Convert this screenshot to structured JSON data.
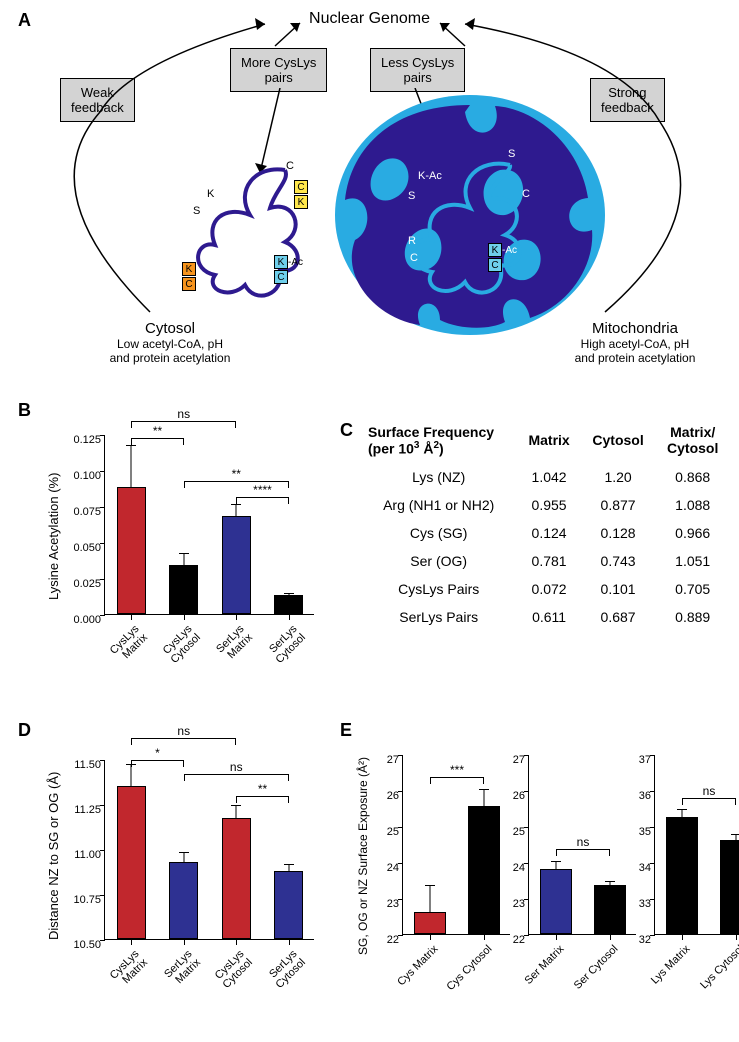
{
  "panelA": {
    "label": "A",
    "title": "Nuclear Genome",
    "boxes": {
      "weak_feedback": "Weak\nfeedback",
      "more_pairs": "More CysLys\npairs",
      "less_pairs": "Less CysLys\npairs",
      "strong_feedback": "Strong\nfeedback"
    },
    "cytosol": {
      "title": "Cytosol",
      "subtitle": "Low acetyl-CoA, pH\nand protein acetylation"
    },
    "mitochondria": {
      "title": "Mitochondria",
      "subtitle": "High acetyl-CoA, pH\nand protein acetylation"
    },
    "colors": {
      "mito_outer": "#29abe2",
      "mito_inner": "#2e1a8f",
      "protein_line": "#2e1a8f",
      "box_bg": "#d3d3d3",
      "yellow_box": "#ffe74c",
      "orange_box": "#f7941d",
      "blue_box": "#6fcfeb"
    },
    "cytosol_residues": [
      "C",
      "K",
      "S",
      "K",
      "C",
      "K",
      "C",
      "C",
      "K-Ac"
    ],
    "mito_residues": [
      "S",
      "K-Ac",
      "S",
      "C",
      "R",
      "C",
      "K-Ac",
      "C"
    ]
  },
  "panelB": {
    "label": "B",
    "y_label": "Lysine Acetylation (%)",
    "ylim": [
      0,
      0.125
    ],
    "yticks": [
      0.0,
      0.025,
      0.05,
      0.075,
      0.1,
      0.125
    ],
    "categories": [
      "CysLys\nMatrix",
      "CysLys\nCytosol",
      "SerLys\nMatrix",
      "SerLys\nCytosol"
    ],
    "values": [
      0.088,
      0.034,
      0.068,
      0.013
    ],
    "errors": [
      0.03,
      0.009,
      0.009,
      0.002
    ],
    "colors": [
      "#c1272d",
      "#000000",
      "#2e3192",
      "#000000"
    ],
    "sig": [
      {
        "from": 0,
        "to": 1,
        "label": "**",
        "y": 0.123
      },
      {
        "from": 2,
        "to": 3,
        "label": "****",
        "y": 0.082
      },
      {
        "from": 0,
        "to": 2,
        "label": "ns",
        "y": 0.135
      },
      {
        "from": 1,
        "to": 3,
        "label": "**",
        "y": 0.093
      }
    ]
  },
  "panelC": {
    "label": "C",
    "header": [
      "Surface Frequency\n(per 10³ Å²)",
      "Matrix",
      "Cytosol",
      "Matrix/\nCytosol"
    ],
    "rows": [
      [
        "Lys (NZ)",
        "1.042",
        "1.20",
        "0.868"
      ],
      [
        "Arg (NH1 or NH2)",
        "0.955",
        "0.877",
        "1.088"
      ],
      [
        "Cys (SG)",
        "0.124",
        "0.128",
        "0.966"
      ],
      [
        "Ser (OG)",
        "0.781",
        "0.743",
        "1.051"
      ],
      [
        "CysLys Pairs",
        "0.072",
        "0.101",
        "0.705"
      ],
      [
        "SerLys Pairs",
        "0.611",
        "0.687",
        "0.889"
      ]
    ]
  },
  "panelD": {
    "label": "D",
    "y_label": "Distance NZ to SG or OG (Å)",
    "ylim": [
      10.5,
      11.5
    ],
    "yticks": [
      10.5,
      10.75,
      11.0,
      11.25,
      11.5
    ],
    "categories": [
      "CysLys\nMatrix",
      "SerLys\nMatrix",
      "CysLys\nCytosol",
      "SerLys\nCytosol"
    ],
    "values": [
      11.35,
      10.93,
      11.17,
      10.88
    ],
    "errors": [
      0.13,
      0.06,
      0.08,
      0.04
    ],
    "colors": [
      "#c1272d",
      "#2e3192",
      "#c1272d",
      "#2e3192"
    ],
    "sig": [
      {
        "from": 0,
        "to": 1,
        "label": "*",
        "y": 11.5
      },
      {
        "from": 2,
        "to": 3,
        "label": "**",
        "y": 11.3
      },
      {
        "from": 0,
        "to": 2,
        "label": "ns",
        "y": 11.62
      },
      {
        "from": 1,
        "to": 3,
        "label": "ns",
        "y": 11.42
      }
    ]
  },
  "panelE": {
    "label": "E",
    "y_label": "SG, OG or NZ Surface Exposure (Å²)",
    "subcharts": [
      {
        "ylim": [
          22,
          27
        ],
        "yticks": [
          22,
          23,
          24,
          25,
          26,
          27
        ],
        "categories": [
          "Cys Matrix",
          "Cys Cytosol"
        ],
        "values": [
          22.6,
          25.55
        ],
        "errors": [
          0.8,
          0.5
        ],
        "colors": [
          "#c1272d",
          "#000000"
        ],
        "sig": {
          "label": "***",
          "y": 26.4
        }
      },
      {
        "ylim": [
          22,
          27
        ],
        "yticks": [
          22,
          23,
          24,
          25,
          26,
          27
        ],
        "categories": [
          "Ser Matrix",
          "Ser Cytosol"
        ],
        "values": [
          23.8,
          23.35
        ],
        "errors": [
          0.25,
          0.15
        ],
        "colors": [
          "#2e3192",
          "#000000"
        ],
        "sig": {
          "label": "ns",
          "y": 24.4
        }
      },
      {
        "ylim": [
          32,
          37
        ],
        "yticks": [
          32,
          33,
          34,
          35,
          36,
          37
        ],
        "categories": [
          "Lys Matrix",
          "Lys Cytosol"
        ],
        "values": [
          35.25,
          34.6
        ],
        "errors": [
          0.25,
          0.2
        ],
        "colors": [
          "#000000",
          "#000000"
        ],
        "sig": {
          "label": "ns",
          "y": 35.8
        }
      }
    ]
  }
}
